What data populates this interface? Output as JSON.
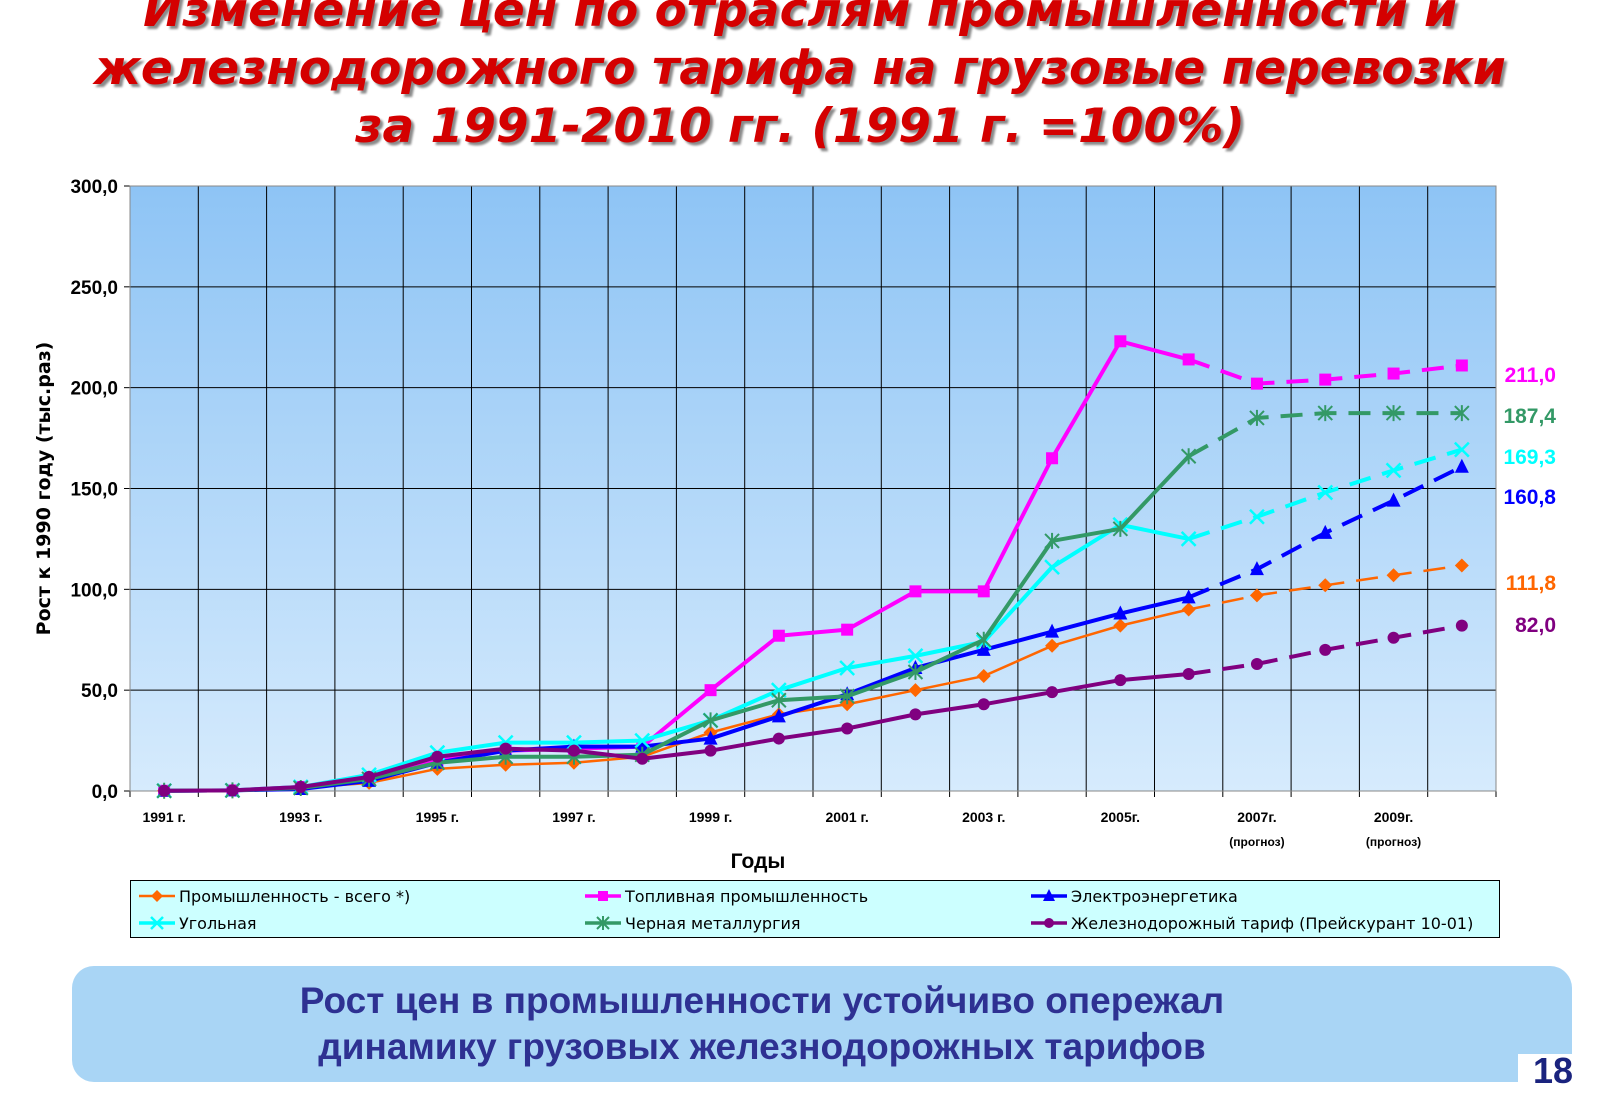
{
  "title": {
    "line1": "Изменение  цен  по отраслям промышленности  и",
    "line2": "железнодорожного  тарифа  на грузовые перевозки",
    "line3": "за 1991-2010 гг. (1991 г. =100%)"
  },
  "chart_data": {
    "type": "line",
    "title": "",
    "xlabel": "Годы",
    "ylabel": "Рост к 1990 году (тыс.раз)",
    "x": [
      1991,
      1992,
      1993,
      1994,
      1995,
      1996,
      1997,
      1998,
      1999,
      2000,
      2001,
      2002,
      2003,
      2004,
      2005,
      2006,
      2007,
      2008,
      2009,
      2010
    ],
    "x_tick_labels": [
      "1991 г.",
      "1993 г.",
      "1995 г.",
      "1997 г.",
      "1999 г.",
      "2001 г.",
      "2003 г.",
      "2005г.",
      "2007г.",
      "2009г."
    ],
    "x_tick_years": [
      1991,
      1993,
      1995,
      1997,
      1999,
      2001,
      2003,
      2005,
      2007,
      2009
    ],
    "forecast_labels": [
      "(прогноз)",
      "(прогноз)"
    ],
    "forecast_years": [
      2007,
      2009
    ],
    "y_tick_labels": [
      "0,0",
      "50,0",
      "100,0",
      "150,0",
      "200,0",
      "250,0",
      "300,0"
    ],
    "ylim": [
      0,
      300
    ],
    "grid": true,
    "forecast_from": 2006,
    "legend_position": "bottom",
    "series": [
      {
        "name": "Промышленность - всего *)",
        "color": "#ff6600",
        "marker": "diamond",
        "end_label": "111,8",
        "values": [
          0.1,
          0.3,
          1.5,
          4,
          11,
          13,
          14,
          17,
          29,
          38,
          43,
          50,
          57,
          72,
          82,
          90,
          97,
          102,
          107,
          111.8
        ]
      },
      {
        "name": "Топливная промышленность",
        "color": "#ff00ff",
        "marker": "square",
        "end_label": "211,0",
        "values": [
          0.1,
          0.3,
          2,
          6,
          15,
          20,
          21,
          22,
          50,
          77,
          80,
          99,
          99,
          165,
          223,
          214,
          202,
          204,
          207,
          211.0
        ]
      },
      {
        "name": "Электроэнергетика",
        "color": "#0000ff",
        "marker": "triangle",
        "end_label": "160,8",
        "values": [
          0.1,
          0.3,
          1,
          5,
          14,
          20,
          22,
          22,
          26,
          37,
          48,
          61,
          70,
          79,
          88,
          96,
          110,
          128,
          144,
          160.8
        ]
      },
      {
        "name": "Угольная",
        "color": "#00ffff",
        "marker": "x",
        "end_label": "169,3",
        "values": [
          0.1,
          0.3,
          2,
          8,
          19,
          24,
          24,
          25,
          35,
          50,
          61,
          67,
          74,
          111,
          132,
          125,
          136,
          148,
          159,
          169.3
        ]
      },
      {
        "name": "Черная металлургия",
        "color": "#339966",
        "marker": "star",
        "end_label": "187,4",
        "values": [
          0.1,
          0.3,
          1.5,
          6,
          14,
          17,
          17,
          18,
          35,
          45,
          47,
          59,
          75,
          124,
          130,
          166,
          185,
          187.4,
          187.4,
          187.4
        ]
      },
      {
        "name": "Железнодорожный тариф (Прейскурант 10-01)",
        "color": "#800080",
        "marker": "circle",
        "end_label": "82,0",
        "values": [
          0.1,
          0.3,
          2,
          7,
          17,
          21,
          20,
          16,
          20,
          26,
          31,
          38,
          43,
          49,
          55,
          58,
          63,
          70,
          76,
          82.0
        ]
      }
    ]
  },
  "callout": {
    "line1": "Рост цен в промышленности устойчиво опережал",
    "line2": "динамику грузовых железнодорожных тарифов"
  },
  "page_number": "18"
}
